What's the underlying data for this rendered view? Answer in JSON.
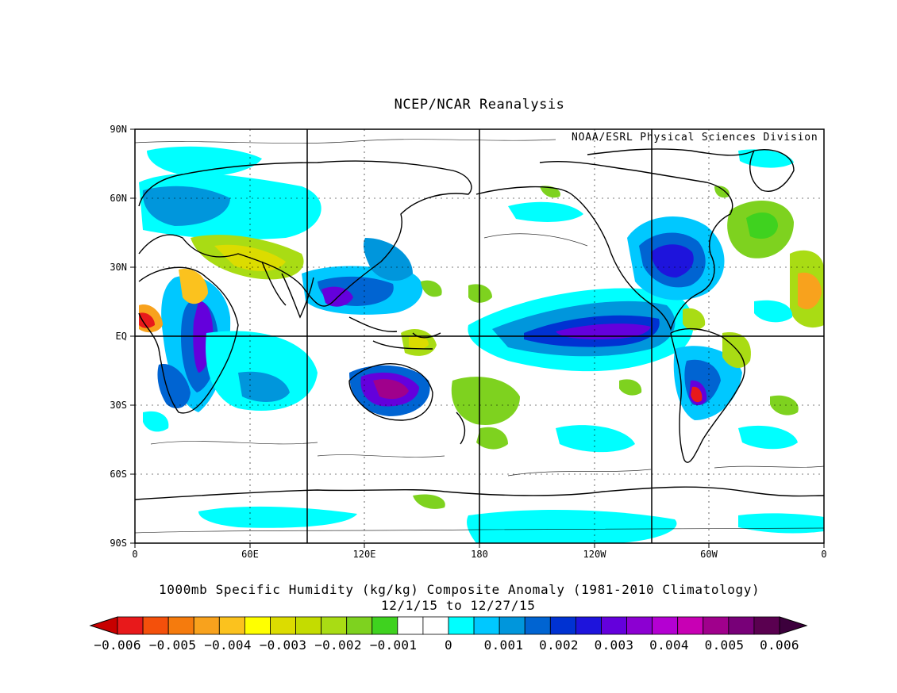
{
  "header": {
    "title": "NCEP/NCAR Reanalysis",
    "credit": "NOAA/ESRL Physical Sciences Division"
  },
  "caption": {
    "line1": "1000mb Specific Humidity (kg/kg) Composite Anomaly (1981-2010 Climatology)",
    "line2": "12/1/15  to 12/27/15"
  },
  "axes": {
    "lat_labels": [
      "90N",
      "60N",
      "30N",
      "EQ",
      "30S",
      "60S",
      "90S"
    ],
    "lon_labels": [
      "0",
      "60E",
      "120E",
      "180",
      "120W",
      "60W",
      "0"
    ]
  },
  "colorbar": {
    "labels": [
      "-0.006",
      "-0.005",
      "-0.004",
      "-0.003",
      "-0.002",
      "-0.001",
      "0",
      "0.001",
      "0.002",
      "0.003",
      "0.004",
      "0.005",
      "0.006"
    ],
    "colors": [
      "#e8191b",
      "#f4500b",
      "#f57b0d",
      "#f8a21d",
      "#fbc21e",
      "#ffff00",
      "#dcdc00",
      "#c4dc00",
      "#a9dc14",
      "#7ed21f",
      "#3fd21f",
      "#ffffff",
      "#ffffff",
      "#00ffff",
      "#00c8ff",
      "#0096dc",
      "#0064d2",
      "#0032d2",
      "#1e14dc",
      "#6400dc",
      "#8c00d2",
      "#b400d2",
      "#c800b4",
      "#a0008c",
      "#780078",
      "#5a0050"
    ],
    "low_arrow_color": "#c80000",
    "high_arrow_color": "#3c003c"
  }
}
